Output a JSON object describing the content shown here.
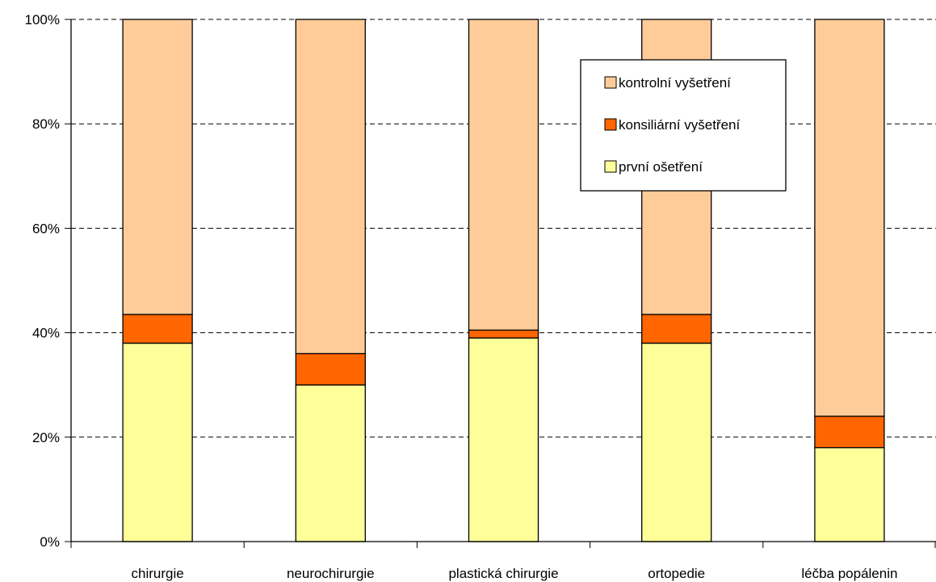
{
  "chart_data": {
    "type": "bar",
    "stacked": true,
    "categories": [
      "chirurgie",
      "neurochirurgie",
      "plastická chirurgie",
      "ortopedie",
      "léčba popálenin"
    ],
    "series": [
      {
        "name": "první ošetření",
        "values": [
          38,
          30,
          39,
          38,
          18
        ],
        "color": "#FFFF99"
      },
      {
        "name": "konsiliární vyšetření",
        "values": [
          5.5,
          6,
          1.5,
          5.5,
          6
        ],
        "color": "#FF6600"
      },
      {
        "name": "kontrolní vyšetření",
        "values": [
          56.5,
          64,
          59.5,
          56.5,
          76
        ],
        "color": "#FFCC99"
      }
    ],
    "y_ticks": [
      "0%",
      "20%",
      "40%",
      "60%",
      "80%",
      "100%"
    ],
    "ylim": [
      0,
      100
    ],
    "title": "",
    "xlabel": "",
    "ylabel": "",
    "grid": "horizontal-dashed",
    "legend": {
      "placement": "top-right",
      "entries": [
        "kontrolní vyšetření",
        "konsiliární vyšetření",
        "první ošetření"
      ]
    }
  }
}
